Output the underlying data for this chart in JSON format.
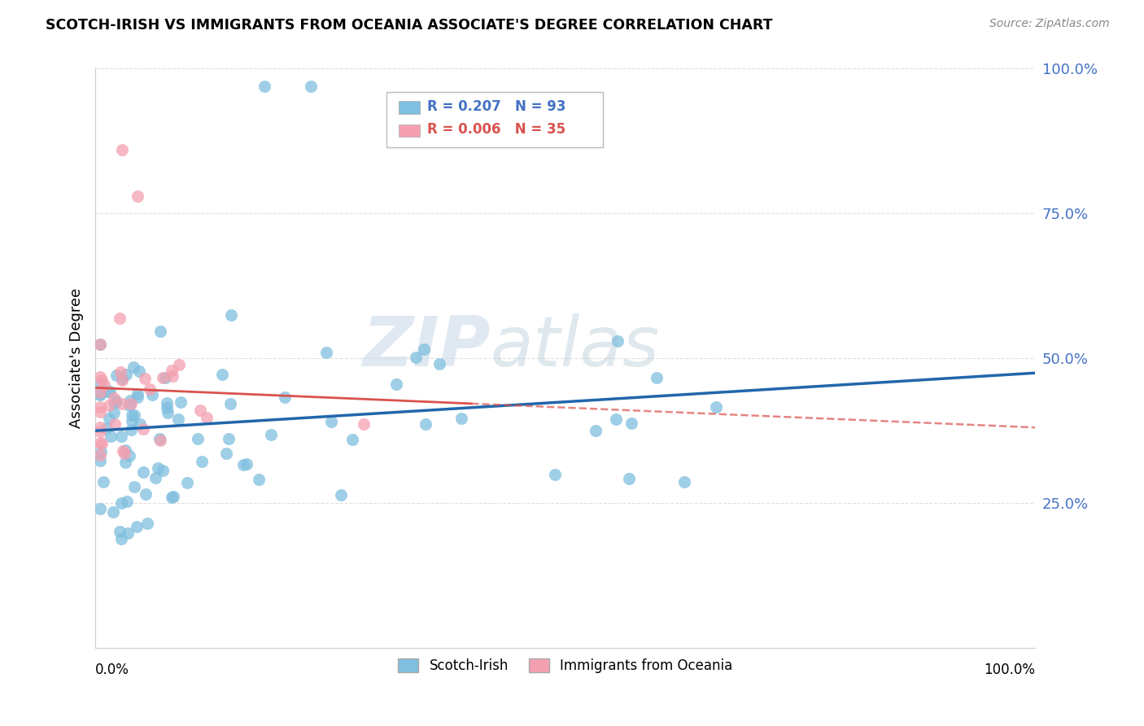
{
  "title": "SCOTCH-IRISH VS IMMIGRANTS FROM OCEANIA ASSOCIATE'S DEGREE CORRELATION CHART",
  "source": "Source: ZipAtlas.com",
  "ylabel": "Associate's Degree",
  "watermark_zip": "ZIP",
  "watermark_atlas": "atlas",
  "legend_label_1": "Scotch-Irish",
  "legend_label_2": "Immigrants from Oceania",
  "r1": 0.207,
  "n1": 93,
  "r2": 0.006,
  "n2": 35,
  "color1": "#7fbfdf",
  "color2": "#f4a0b0",
  "line1_color": "#2166ac",
  "line2_color": "#d9534f",
  "background_color": "#ffffff",
  "grid_color": "#dddddd",
  "ytick_color": "#4472c4",
  "xlim": [
    0.0,
    1.0
  ],
  "ylim": [
    0.0,
    1.0
  ],
  "yticks": [
    0.25,
    0.5,
    0.75,
    1.0
  ],
  "yticklabels": [
    "25.0%",
    "50.0%",
    "75.0%",
    "100.0%"
  ]
}
